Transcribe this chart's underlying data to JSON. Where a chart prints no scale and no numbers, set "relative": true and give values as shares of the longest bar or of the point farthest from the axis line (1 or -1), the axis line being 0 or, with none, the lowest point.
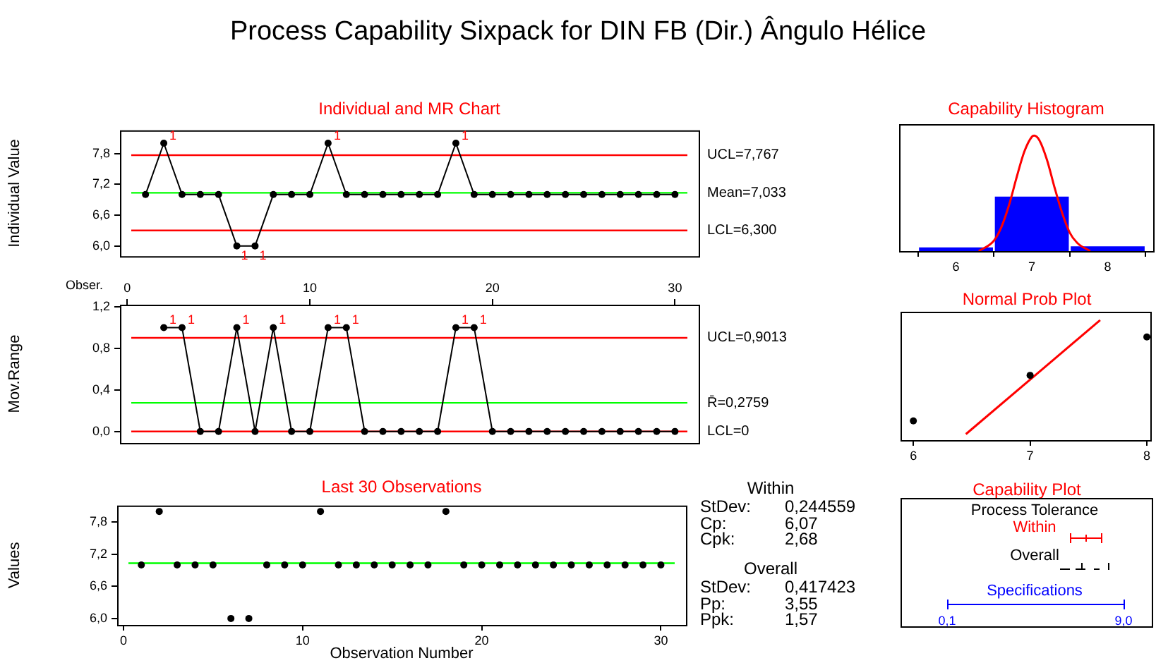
{
  "chart_data": [
    {
      "type": "other",
      "title": "Process Capability Sixpack for DIN FB (Dir.) Ângulo Hélice"
    },
    {
      "type": "line",
      "title": "Individual and MR Chart",
      "ylabel": "Individual Value",
      "marker": "circle",
      "tick_labels": "y",
      "x": [
        1,
        2,
        3,
        4,
        5,
        6,
        7,
        8,
        9,
        10,
        11,
        12,
        13,
        14,
        15,
        16,
        17,
        18,
        19,
        20,
        21,
        22,
        23,
        24,
        25,
        26,
        27,
        28,
        29,
        30
      ],
      "series": [
        {
          "color": "#000000",
          "values": [
            7,
            8,
            7,
            7,
            7,
            6,
            6,
            7,
            7,
            7,
            8,
            7,
            7,
            7,
            7,
            7,
            7,
            8,
            7,
            7,
            7,
            7,
            7,
            7,
            7,
            7,
            7,
            7,
            7,
            7
          ]
        }
      ],
      "xlim": [
        -0.4,
        31.3
      ],
      "ylim": [
        5.8,
        8.25
      ],
      "yticks": [
        {
          "value": 6,
          "label": "6,0"
        },
        {
          "value": 6.6,
          "label": "6,6"
        },
        {
          "value": 7.2,
          "label": "7,2"
        },
        {
          "value": 7.8,
          "label": "7,8"
        }
      ],
      "ref_lines": [
        {
          "axis": "y",
          "value": 7.767,
          "label": "UCL=7,767",
          "color": "#ff0000"
        },
        {
          "axis": "y",
          "value": 7.033,
          "label": "Mean=7,033",
          "color": "#00ff00"
        },
        {
          "axis": "y",
          "value": 6.3,
          "label": "LCL=6,300",
          "color": "#ff0000"
        }
      ],
      "annotations": [
        {
          "text": "1",
          "x": 2,
          "y": 8
        },
        {
          "text": "1",
          "x": 6,
          "y": 6
        },
        {
          "text": "1",
          "x": 7,
          "y": 6
        },
        {
          "text": "1",
          "x": 11,
          "y": 8
        },
        {
          "text": "1",
          "x": 18,
          "y": 8
        }
      ]
    },
    {
      "type": "line",
      "ylabel": "Mov.Range",
      "xlabel": "Obser.",
      "marker": "circle",
      "series": [
        {
          "color": "#000000",
          "x": [
            2,
            3,
            4,
            5,
            6,
            7,
            8,
            9,
            10,
            11,
            12,
            13,
            14,
            15,
            16,
            17,
            18,
            19,
            20,
            21,
            22,
            23,
            24,
            25,
            26,
            27,
            28,
            29,
            30
          ],
          "values": [
            1,
            1,
            0,
            0,
            1,
            0,
            1,
            0,
            0,
            1,
            1,
            0,
            0,
            0,
            0,
            0,
            1,
            1,
            0,
            0,
            0,
            0,
            0,
            0,
            0,
            0,
            0,
            0,
            0
          ]
        }
      ],
      "xlim": [
        -0.4,
        31.3
      ],
      "xticks": [
        0,
        10,
        20,
        30
      ],
      "ylim": [
        -0.11,
        1.22
      ],
      "yticks": [
        {
          "value": 0,
          "label": "0,0"
        },
        {
          "value": 0.4,
          "label": "0,4"
        },
        {
          "value": 0.8,
          "label": "0,8"
        },
        {
          "value": 1.2,
          "label": "1,2"
        }
      ],
      "ref_lines": [
        {
          "axis": "y",
          "value": 0.9013,
          "label": "UCL=0,9013",
          "color": "#ff0000"
        },
        {
          "axis": "y",
          "value": 0.2759,
          "label": "R̄=0,2759",
          "color": "#00ff00"
        },
        {
          "axis": "y",
          "value": 0,
          "label": "LCL=0",
          "color": "#ff0000"
        }
      ],
      "annotations": [
        {
          "text": "1",
          "x": 2,
          "y": 1
        },
        {
          "text": "1",
          "x": 3,
          "y": 1
        },
        {
          "text": "1",
          "x": 6,
          "y": 1
        },
        {
          "text": "1",
          "x": 8,
          "y": 1
        },
        {
          "text": "1",
          "x": 11,
          "y": 1
        },
        {
          "text": "1",
          "x": 12,
          "y": 1
        },
        {
          "text": "1",
          "x": 18,
          "y": 1
        },
        {
          "text": "1",
          "x": 19,
          "y": 1
        }
      ]
    },
    {
      "type": "scatter",
      "title": "Last 30 Observations",
      "xlabel": "Observation Number",
      "ylabel": "Values",
      "marker": "circle",
      "color": "#000000",
      "x": [
        1,
        2,
        3,
        4,
        5,
        6,
        7,
        8,
        9,
        10,
        11,
        12,
        13,
        14,
        15,
        16,
        17,
        18,
        19,
        20,
        21,
        22,
        23,
        24,
        25,
        26,
        27,
        28,
        29,
        30
      ],
      "values": [
        7,
        8,
        7,
        7,
        7,
        6,
        6,
        7,
        7,
        7,
        8,
        7,
        7,
        7,
        7,
        7,
        7,
        8,
        7,
        7,
        7,
        7,
        7,
        7,
        7,
        7,
        7,
        7,
        7,
        7
      ],
      "xlim": [
        -0.35,
        31.4
      ],
      "xticks": [
        0,
        10,
        20,
        30
      ],
      "ylim": [
        5.88,
        8.11
      ],
      "yticks": [
        {
          "value": 6,
          "label": "6,0"
        },
        {
          "value": 6.6,
          "label": "6,6"
        },
        {
          "value": 7.2,
          "label": "7,2"
        },
        {
          "value": 7.8,
          "label": "7,8"
        }
      ],
      "ref_lines": [
        {
          "axis": "y",
          "value": 7.033,
          "color": "#00ff00"
        }
      ]
    },
    {
      "type": "other",
      "annotations": [
        "Within",
        "StDev:",
        "0,244559",
        "Cp:",
        "6,07",
        "Cpk:",
        "2,68",
        "Overall",
        "StDev:",
        "0,417423",
        "Pp:",
        "3,55",
        "Ppk:",
        "1,57"
      ]
    },
    {
      "type": "histogram",
      "title": "Capability Histogram",
      "relative": true,
      "bins": [
        5.5,
        6.5,
        7.5,
        8.5
      ],
      "color": "#0000ff",
      "values": [
        0.04,
        0.48,
        0.05
      ],
      "series": [
        {
          "type": "line",
          "color": "#ff0000",
          "marker": "none",
          "x": [
            6.3,
            6.5,
            6.6,
            6.7,
            6.8,
            6.9,
            7.0,
            7.03,
            7.1,
            7.2,
            7.3,
            7.4,
            7.5,
            7.6,
            7.77
          ],
          "values": [
            0,
            0.09,
            0.21,
            0.4,
            0.64,
            0.86,
            0.99,
            1,
            0.96,
            0.79,
            0.55,
            0.33,
            0.16,
            0.07,
            0
          ]
        }
      ],
      "xlim": [
        5.25,
        8.6
      ],
      "xticks": [
        6,
        7,
        8
      ]
    },
    {
      "type": "scatter",
      "title": "Normal Prob Plot",
      "relative": true,
      "marker": "circle",
      "series": [
        {
          "color": "#000000",
          "x": [
            6,
            7,
            8
          ],
          "values": [
            0.16,
            0.54,
            0.86
          ]
        },
        {
          "type": "line",
          "marker": "none",
          "color": "#ff0000",
          "x": [
            6.45,
            7.6
          ],
          "values": [
            0.05,
            1
          ]
        }
      ],
      "xlim": [
        5.89,
        8.03
      ],
      "xticks": [
        6,
        7,
        8
      ]
    },
    {
      "type": "other",
      "title": "Capability Plot",
      "annotations": [
        "Process Tolerance",
        "Within",
        "Overall",
        "Specifications",
        "0,1",
        "9,0"
      ]
    }
  ]
}
